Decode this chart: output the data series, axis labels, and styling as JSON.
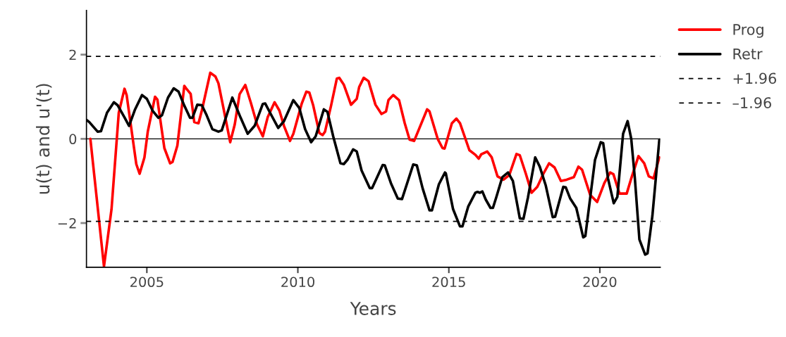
{
  "chart_data": {
    "type": "line",
    "xlabel": "Years",
    "ylabel": "u(t) and u'(t)",
    "xlim": [
      2003,
      2022
    ],
    "xticks": [
      2005,
      2010,
      2015,
      2020
    ],
    "ylim": [
      -3.05,
      3.05
    ],
    "yticks": [
      -2,
      0,
      2
    ],
    "grid": false,
    "legend": "right",
    "line_style": "solid",
    "marker": "none",
    "ref_lines": [
      {
        "axis": "y",
        "value": 0,
        "color": "#000000",
        "line_style": "solid"
      }
    ],
    "series": [
      {
        "name": "Prog",
        "color": "#ff0000",
        "x": [
          2003.13,
          2003.58,
          2003.83,
          2004.07,
          2004.26,
          2004.33,
          2004.65,
          2004.76,
          2004.92,
          2005.03,
          2005.27,
          2005.35,
          2005.58,
          2005.77,
          2005.85,
          2006.01,
          2006.24,
          2006.3,
          2006.45,
          2006.57,
          2006.71,
          2006.82,
          2007.1,
          2007.27,
          2007.37,
          2007.52,
          2007.76,
          2007.91,
          2008.07,
          2008.26,
          2008.45,
          2008.65,
          2008.84,
          2009.0,
          2009.23,
          2009.39,
          2009.54,
          2009.74,
          2009.85,
          2010.13,
          2010.28,
          2010.38,
          2010.51,
          2010.71,
          2010.82,
          2010.9,
          2011.1,
          2011.29,
          2011.37,
          2011.52,
          2011.76,
          2011.95,
          2012.03,
          2012.18,
          2012.34,
          2012.57,
          2012.77,
          2012.92,
          2013.0,
          2013.16,
          2013.35,
          2013.54,
          2013.7,
          2013.85,
          2014.28,
          2014.36,
          2014.63,
          2014.79,
          2014.86,
          2015.1,
          2015.25,
          2015.37,
          2015.68,
          2015.88,
          2015.99,
          2016.07,
          2016.27,
          2016.42,
          2016.61,
          2016.81,
          2017.0,
          2017.24,
          2017.35,
          2017.55,
          2017.74,
          2017.93,
          2018.13,
          2018.32,
          2018.5,
          2018.71,
          2018.9,
          2019.14,
          2019.29,
          2019.41,
          2019.68,
          2019.91,
          2020.15,
          2020.34,
          2020.45,
          2020.65,
          2020.89,
          2021.04,
          2021.28,
          2021.47,
          2021.62,
          2021.78,
          2021.97
        ],
        "values": [
          0,
          -3.03,
          -1.67,
          0.62,
          1.19,
          1.04,
          -0.6,
          -0.83,
          -0.44,
          0.17,
          1.0,
          0.93,
          -0.22,
          -0.58,
          -0.55,
          -0.16,
          1.26,
          1.2,
          1.07,
          0.4,
          0.37,
          0.67,
          1.57,
          1.48,
          1.32,
          0.79,
          -0.08,
          0.34,
          1.06,
          1.28,
          0.84,
          0.34,
          0.06,
          0.51,
          0.87,
          0.67,
          0.31,
          -0.05,
          0.12,
          0.84,
          1.12,
          1.1,
          0.79,
          0.14,
          0.09,
          0.17,
          0.79,
          1.43,
          1.45,
          1.29,
          0.81,
          0.95,
          1.23,
          1.45,
          1.37,
          0.81,
          0.59,
          0.65,
          0.92,
          1.04,
          0.92,
          0.37,
          -0.02,
          -0.05,
          0.7,
          0.65,
          0.0,
          -0.22,
          -0.23,
          0.37,
          0.48,
          0.37,
          -0.27,
          -0.38,
          -0.47,
          -0.37,
          -0.3,
          -0.44,
          -0.89,
          -0.97,
          -0.86,
          -0.36,
          -0.39,
          -0.83,
          -1.28,
          -1.14,
          -0.83,
          -0.58,
          -0.68,
          -1.0,
          -0.97,
          -0.91,
          -0.66,
          -0.73,
          -1.33,
          -1.5,
          -1.05,
          -0.8,
          -0.84,
          -1.3,
          -1.3,
          -0.94,
          -0.41,
          -0.58,
          -0.89,
          -0.94,
          -0.44
        ]
      },
      {
        "name": "Retr",
        "color": "#000000",
        "x": [
          2003.0,
          2003.09,
          2003.37,
          2003.48,
          2003.68,
          2003.91,
          2004.03,
          2004.26,
          2004.41,
          2004.61,
          2004.84,
          2005.0,
          2005.19,
          2005.38,
          2005.5,
          2005.7,
          2005.89,
          2006.05,
          2006.24,
          2006.43,
          2006.51,
          2006.67,
          2006.82,
          2006.98,
          2007.17,
          2007.37,
          2007.48,
          2007.83,
          2008.1,
          2008.34,
          2008.57,
          2008.84,
          2008.92,
          2009.08,
          2009.35,
          2009.54,
          2009.85,
          2010.05,
          2010.24,
          2010.44,
          2010.59,
          2010.86,
          2010.98,
          2011.17,
          2011.41,
          2011.52,
          2011.64,
          2011.83,
          2011.95,
          2012.11,
          2012.38,
          2012.46,
          2012.81,
          2012.88,
          2013.08,
          2013.31,
          2013.45,
          2013.82,
          2013.94,
          2014.13,
          2014.36,
          2014.44,
          2014.67,
          2014.87,
          2014.9,
          2015.14,
          2015.37,
          2015.45,
          2015.64,
          2015.88,
          2015.95,
          2016.03,
          2016.11,
          2016.22,
          2016.38,
          2016.46,
          2016.57,
          2016.77,
          2016.96,
          2017.12,
          2017.35,
          2017.47,
          2017.62,
          2017.86,
          2018.01,
          2018.21,
          2018.44,
          2018.52,
          2018.79,
          2018.87,
          2019.02,
          2019.22,
          2019.45,
          2019.52,
          2019.84,
          2020.03,
          2020.11,
          2020.27,
          2020.46,
          2020.58,
          2020.77,
          2020.92,
          2021.04,
          2021.16,
          2021.31,
          2021.5,
          2021.58,
          2021.74,
          2021.97
        ],
        "values": [
          0.45,
          0.4,
          0.17,
          0.18,
          0.62,
          0.87,
          0.8,
          0.51,
          0.31,
          0.7,
          1.04,
          0.95,
          0.67,
          0.5,
          0.56,
          0.98,
          1.2,
          1.12,
          0.79,
          0.5,
          0.5,
          0.81,
          0.8,
          0.56,
          0.23,
          0.17,
          0.2,
          0.98,
          0.51,
          0.12,
          0.31,
          0.83,
          0.84,
          0.62,
          0.26,
          0.42,
          0.92,
          0.73,
          0.23,
          -0.08,
          0.06,
          0.7,
          0.64,
          0.06,
          -0.58,
          -0.6,
          -0.5,
          -0.25,
          -0.3,
          -0.75,
          -1.17,
          -1.17,
          -0.62,
          -0.63,
          -1.05,
          -1.42,
          -1.43,
          -0.61,
          -0.63,
          -1.17,
          -1.7,
          -1.7,
          -1.08,
          -0.8,
          -0.82,
          -1.67,
          -2.08,
          -2.08,
          -1.61,
          -1.28,
          -1.26,
          -1.28,
          -1.25,
          -1.44,
          -1.64,
          -1.64,
          -1.39,
          -0.91,
          -0.8,
          -1.0,
          -1.89,
          -1.9,
          -1.39,
          -0.44,
          -0.66,
          -1.11,
          -1.86,
          -1.85,
          -1.14,
          -1.15,
          -1.42,
          -1.64,
          -2.34,
          -2.31,
          -0.5,
          -0.08,
          -0.1,
          -0.94,
          -1.53,
          -1.38,
          0.12,
          0.42,
          0.0,
          -0.94,
          -2.39,
          -2.75,
          -2.72,
          -1.83,
          -0.02
        ]
      },
      {
        "name": "+1.96",
        "color": "#000000",
        "line_style": "dashed",
        "x": [
          2003,
          2022
        ],
        "values": [
          1.96,
          1.96
        ]
      },
      {
        "name": "–1.96",
        "color": "#000000",
        "line_style": "dashed",
        "x": [
          2003,
          2022
        ],
        "values": [
          -1.96,
          -1.96
        ]
      }
    ]
  }
}
